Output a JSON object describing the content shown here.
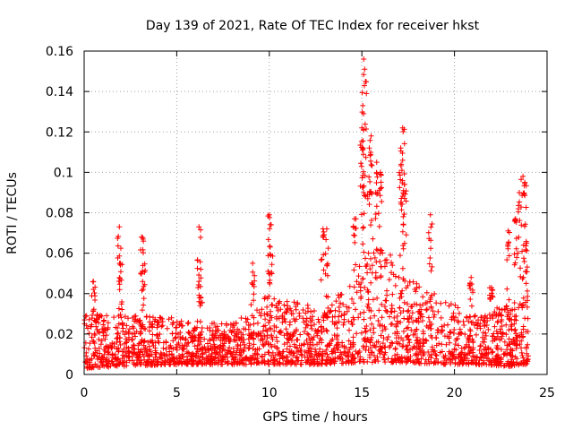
{
  "chart_data": {
    "type": "scatter",
    "title": "Day 139 of 2021, Rate Of TEC Index for receiver hkst",
    "xlabel": "GPS time / hours",
    "ylabel": "ROTI / TECUs",
    "xlim": [
      0,
      25
    ],
    "ylim": [
      0,
      0.16
    ],
    "x_ticks": [
      0,
      5,
      10,
      15,
      20,
      25
    ],
    "x_tick_labels": [
      "0",
      "5",
      "10",
      "15",
      "20",
      "25"
    ],
    "y_ticks": [
      0,
      0.02,
      0.04,
      0.06,
      0.08,
      0.1,
      0.12,
      0.14,
      0.16
    ],
    "y_tick_labels": [
      "0",
      "0.02",
      "0.04",
      "0.06",
      "0.08",
      "0.1",
      "0.12",
      "0.14",
      "0.16"
    ],
    "grid": true,
    "marker": "+",
    "color": "#ff0000",
    "series": [
      {
        "name": "ROTI",
        "x_range": [
          0,
          24
        ],
        "baseline_envelope": [
          {
            "x": 0,
            "low": 0.003,
            "high": 0.03
          },
          {
            "x": 2,
            "low": 0.004,
            "high": 0.03
          },
          {
            "x": 5,
            "low": 0.005,
            "high": 0.028
          },
          {
            "x": 8,
            "low": 0.005,
            "high": 0.025
          },
          {
            "x": 10,
            "low": 0.005,
            "high": 0.04
          },
          {
            "x": 13,
            "low": 0.005,
            "high": 0.032
          },
          {
            "x": 15,
            "low": 0.006,
            "high": 0.055
          },
          {
            "x": 16,
            "low": 0.006,
            "high": 0.07
          },
          {
            "x": 17,
            "low": 0.006,
            "high": 0.05
          },
          {
            "x": 19,
            "low": 0.005,
            "high": 0.04
          },
          {
            "x": 21,
            "low": 0.005,
            "high": 0.03
          },
          {
            "x": 23,
            "low": 0.004,
            "high": 0.035
          },
          {
            "x": 24,
            "low": 0.005,
            "high": 0.04
          }
        ],
        "peaks": [
          {
            "x": 0.5,
            "y": 0.046
          },
          {
            "x": 1.9,
            "y": 0.073
          },
          {
            "x": 1.95,
            "y": 0.055
          },
          {
            "x": 3.1,
            "y": 0.068
          },
          {
            "x": 3.2,
            "y": 0.066
          },
          {
            "x": 6.2,
            "y": 0.073
          },
          {
            "x": 6.3,
            "y": 0.052
          },
          {
            "x": 9.1,
            "y": 0.055
          },
          {
            "x": 10.0,
            "y": 0.079
          },
          {
            "x": 10.1,
            "y": 0.074
          },
          {
            "x": 12.9,
            "y": 0.072
          },
          {
            "x": 13.1,
            "y": 0.072
          },
          {
            "x": 14.6,
            "y": 0.077
          },
          {
            "x": 15.1,
            "y": 0.156
          },
          {
            "x": 15.15,
            "y": 0.151
          },
          {
            "x": 15.05,
            "y": 0.133
          },
          {
            "x": 15.0,
            "y": 0.122
          },
          {
            "x": 15.5,
            "y": 0.118
          },
          {
            "x": 15.4,
            "y": 0.112
          },
          {
            "x": 15.8,
            "y": 0.105
          },
          {
            "x": 16.0,
            "y": 0.1
          },
          {
            "x": 17.2,
            "y": 0.122
          },
          {
            "x": 17.1,
            "y": 0.112
          },
          {
            "x": 17.2,
            "y": 0.106
          },
          {
            "x": 17.3,
            "y": 0.094
          },
          {
            "x": 18.7,
            "y": 0.079
          },
          {
            "x": 20.9,
            "y": 0.048
          },
          {
            "x": 22.0,
            "y": 0.043
          },
          {
            "x": 22.9,
            "y": 0.071
          },
          {
            "x": 23.3,
            "y": 0.077
          },
          {
            "x": 23.5,
            "y": 0.09
          },
          {
            "x": 23.7,
            "y": 0.098
          },
          {
            "x": 23.8,
            "y": 0.095
          },
          {
            "x": 23.9,
            "y": 0.065
          }
        ]
      }
    ]
  }
}
